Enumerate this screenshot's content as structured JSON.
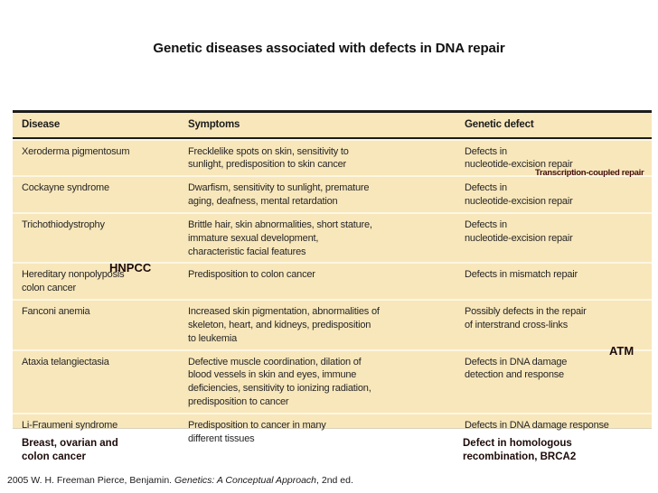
{
  "title": "Genetic diseases associated with defects in DNA repair",
  "colors": {
    "table_background": "#f8e7bb",
    "table_border": "#1c1c1c",
    "body_text": "#262626",
    "annotation_text": "#1d0a0a",
    "transcription_annotation_text": "#44100f",
    "page_background": "#ffffff"
  },
  "table": {
    "headers": [
      "Disease",
      "Symptoms",
      "Genetic defect"
    ],
    "rows": [
      {
        "disease": "Xeroderma pigmentosum",
        "symptoms": "Frecklelike spots on skin, sensitivity to\nsunlight, predisposition to skin cancer",
        "defect": "Defects in\nnucleotide-excision repair"
      },
      {
        "disease": "Cockayne syndrome",
        "symptoms": "Dwarfism, sensitivity to sunlight, premature\naging, deafness, mental retardation",
        "defect": "Defects in\nnucleotide-excision repair"
      },
      {
        "disease": "Trichothiodystrophy",
        "symptoms": "Brittle hair, skin abnormalities, short stature,\nimmature sexual development,\ncharacteristic facial features",
        "defect": "Defects in\nnucleotide-excision repair"
      },
      {
        "disease": "Hereditary nonpolyposis\ncolon cancer",
        "symptoms": "Predisposition to colon cancer",
        "defect": "Defects in mismatch repair"
      },
      {
        "disease": "Fanconi anemia",
        "symptoms": "Increased skin pigmentation, abnormalities of\nskeleton, heart, and kidneys, predisposition\nto leukemia",
        "defect": "Possibly defects in the repair\nof interstrand cross-links"
      },
      {
        "disease": "Ataxia telangiectasia",
        "symptoms": "Defective muscle coordination, dilation of\nblood vessels in skin and eyes, immune\ndeficiencies, sensitivity to ionizing radiation,\npredisposition to cancer",
        "defect": "Defects in DNA damage\ndetection and response"
      },
      {
        "disease": "Li-Fraumeni syndrome",
        "symptoms": "Predisposition to cancer in many\ndifferent tissues",
        "defect": "Defects in DNA damage response"
      }
    ]
  },
  "annotations": {
    "transcription_coupled": "Transcription-coupled repair",
    "hnpcc": "HNPCC",
    "atm": "ATM",
    "breast_ovarian": "Breast, ovarian and\ncolon cancer",
    "brca2": "Defect in homologous\nrecombination, BRCA2"
  },
  "citation": {
    "prefix": "2005 W. H. Freeman Pierce, Benjamin. ",
    "title_italic": "Genetics: A Conceptual Approach",
    "suffix": ", 2nd ed."
  }
}
